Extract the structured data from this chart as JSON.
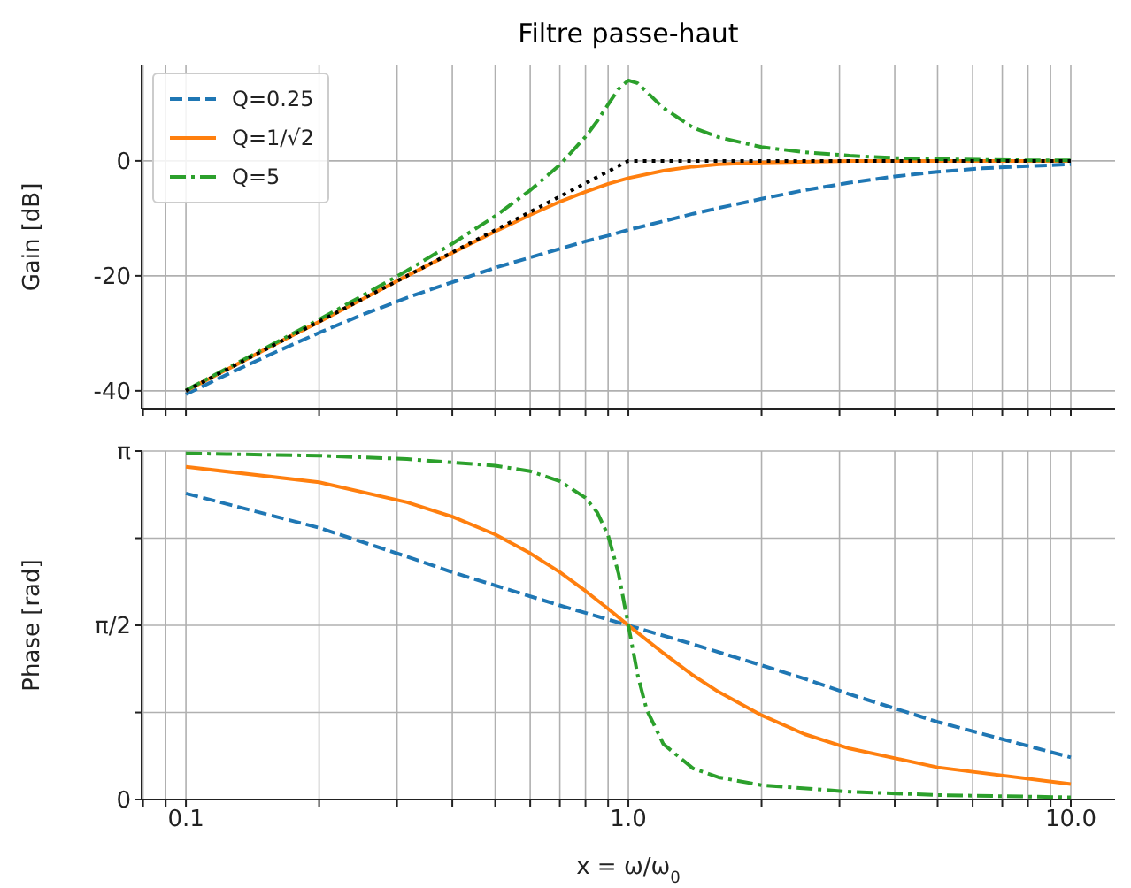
{
  "chart_data": [
    {
      "type": "line",
      "title": "Filtre passe-haut",
      "ylabel": "Gain [dB]",
      "xlim": [
        0.0794,
        12.59
      ],
      "ylim": [
        -43.1,
        16.6
      ],
      "log": "x",
      "grid": true,
      "legend": "top left",
      "tick_labels": "y",
      "marker": "none",
      "xticks": [
        {
          "value": 0.08,
          "label": null
        },
        {
          "value": 0.09,
          "label": null
        },
        {
          "value": 0.1,
          "label": null
        },
        {
          "value": 0.2,
          "label": null
        },
        {
          "value": 0.3,
          "label": null
        },
        {
          "value": 0.4,
          "label": null
        },
        {
          "value": 0.5,
          "label": null
        },
        {
          "value": 0.6,
          "label": null
        },
        {
          "value": 0.7,
          "label": null
        },
        {
          "value": 0.8,
          "label": null
        },
        {
          "value": 0.9,
          "label": null
        },
        {
          "value": 1,
          "label": null
        },
        {
          "value": 2,
          "label": null
        },
        {
          "value": 3,
          "label": null
        },
        {
          "value": 4,
          "label": null
        },
        {
          "value": 5,
          "label": null
        },
        {
          "value": 6,
          "label": null
        },
        {
          "value": 7,
          "label": null
        },
        {
          "value": 8,
          "label": null
        },
        {
          "value": 9,
          "label": null
        },
        {
          "value": 10,
          "label": null
        }
      ],
      "yticks": [
        -40,
        -20,
        0
      ],
      "series": [
        {
          "name": "Q=0.25",
          "color": "#1f77b4",
          "line_style": "dashed",
          "x": [
            0.1,
            0.126,
            0.158,
            0.2,
            0.25,
            0.316,
            0.4,
            0.5,
            0.6,
            0.7,
            0.8,
            0.9,
            1,
            1.2,
            1.4,
            1.6,
            2,
            2.5,
            3.16,
            4,
            5,
            6.3,
            8,
            10
          ],
          "values": [
            -40.6,
            -36.9,
            -33.4,
            -29.9,
            -26.8,
            -23.8,
            -21.1,
            -18.6,
            -16.8,
            -15.3,
            -14.0,
            -13.0,
            -12.0,
            -10.5,
            -9.2,
            -8.2,
            -6.6,
            -5.1,
            -3.8,
            -2.7,
            -1.9,
            -1.3,
            -0.9,
            -0.6
          ]
        },
        {
          "name": "Q=1/√2",
          "color": "#ff7f0e",
          "line_style": "solid",
          "x": [
            0.1,
            0.126,
            0.158,
            0.2,
            0.25,
            0.316,
            0.4,
            0.5,
            0.6,
            0.7,
            0.8,
            0.9,
            1,
            1.2,
            1.4,
            1.6,
            2,
            3.16,
            5,
            10
          ],
          "values": [
            -40.0,
            -36.0,
            -32.0,
            -28.0,
            -24.1,
            -20.0,
            -16.0,
            -12.3,
            -9.4,
            -7.1,
            -5.4,
            -4.0,
            -3.0,
            -1.7,
            -1.0,
            -0.6,
            -0.3,
            0.0,
            0.0,
            0.0
          ]
        },
        {
          "name": "Q=5",
          "color": "#2ca02c",
          "line_style": "dashdot",
          "x": [
            0.1,
            0.126,
            0.158,
            0.2,
            0.25,
            0.316,
            0.4,
            0.5,
            0.6,
            0.7,
            0.8,
            0.85,
            0.9,
            0.95,
            1,
            1.05,
            1.1,
            1.2,
            1.4,
            1.6,
            2,
            2.5,
            3.16,
            4,
            5,
            6.3,
            8,
            10
          ],
          "values": [
            -39.9,
            -35.8,
            -31.8,
            -27.6,
            -23.5,
            -19.1,
            -14.4,
            -9.6,
            -5.1,
            -0.7,
            4.2,
            6.9,
            9.8,
            12.5,
            14.0,
            13.5,
            12.0,
            9.2,
            5.8,
            4.1,
            2.4,
            1.5,
            0.9,
            0.5,
            0.3,
            0.2,
            0.1,
            0.1
          ]
        },
        {
          "color": "#000000",
          "line_style": "dotted",
          "x": [
            0.1,
            1,
            10
          ],
          "values": [
            -40,
            0,
            0
          ]
        }
      ]
    },
    {
      "type": "line",
      "xlabel": "x = ω/ω$_{0}$",
      "ylabel": "Phase [rad]",
      "xlim": [
        0.0794,
        12.59
      ],
      "ylim": [
        0,
        3.1416
      ],
      "log": "x",
      "grid": true,
      "marker": "none",
      "xticks": [
        {
          "value": 0.08,
          "label": null
        },
        {
          "value": 0.09,
          "label": null
        },
        0.1,
        {
          "value": 0.2,
          "label": null
        },
        {
          "value": 0.3,
          "label": null
        },
        {
          "value": 0.4,
          "label": null
        },
        {
          "value": 0.5,
          "label": null
        },
        {
          "value": 0.6,
          "label": null
        },
        {
          "value": 0.7,
          "label": null
        },
        {
          "value": 0.8,
          "label": null
        },
        {
          "value": 0.9,
          "label": null
        },
        {
          "value": 1,
          "label": "1.0"
        },
        {
          "value": 2,
          "label": null
        },
        {
          "value": 3,
          "label": null
        },
        {
          "value": 4,
          "label": null
        },
        {
          "value": 5,
          "label": null
        },
        {
          "value": 6,
          "label": null
        },
        {
          "value": 7,
          "label": null
        },
        {
          "value": 8,
          "label": null
        },
        {
          "value": 9,
          "label": null
        },
        {
          "value": 10,
          "label": "10.0"
        }
      ],
      "yticks": [
        0,
        {
          "value": 0.785,
          "label": null
        },
        {
          "value": 1.571,
          "label": "π/2"
        },
        {
          "value": 2.356,
          "label": null
        },
        {
          "value": 3.1416,
          "label": "π"
        }
      ],
      "series": [
        {
          "color": "#1f77b4",
          "line_style": "dashed",
          "x": [
            0.1,
            0.2,
            0.316,
            0.4,
            0.5,
            0.7,
            1,
            1.4,
            2,
            2.5,
            3.16,
            5,
            10
          ],
          "values": [
            2.76,
            2.45,
            2.19,
            2.05,
            1.93,
            1.75,
            1.57,
            1.4,
            1.21,
            1.09,
            0.95,
            0.7,
            0.38
          ]
        },
        {
          "color": "#ff7f0e",
          "line_style": "solid",
          "x": [
            0.1,
            0.2,
            0.316,
            0.4,
            0.5,
            0.6,
            0.7,
            0.8,
            0.9,
            1,
            1.2,
            1.4,
            1.6,
            2,
            2.5,
            3.16,
            5,
            10
          ],
          "values": [
            3.0,
            2.86,
            2.68,
            2.55,
            2.39,
            2.22,
            2.05,
            1.88,
            1.72,
            1.57,
            1.32,
            1.12,
            0.97,
            0.76,
            0.59,
            0.46,
            0.29,
            0.14
          ]
        },
        {
          "color": "#2ca02c",
          "line_style": "dashdot",
          "x": [
            0.1,
            0.2,
            0.316,
            0.5,
            0.6,
            0.7,
            0.8,
            0.85,
            0.9,
            0.95,
            1,
            1.05,
            1.1,
            1.2,
            1.4,
            1.6,
            2,
            3.16,
            5,
            10
          ],
          "values": [
            3.12,
            3.1,
            3.07,
            3.01,
            2.96,
            2.87,
            2.72,
            2.59,
            2.38,
            2.04,
            1.57,
            1.12,
            0.81,
            0.5,
            0.28,
            0.2,
            0.13,
            0.07,
            0.04,
            0.02
          ]
        }
      ]
    }
  ]
}
